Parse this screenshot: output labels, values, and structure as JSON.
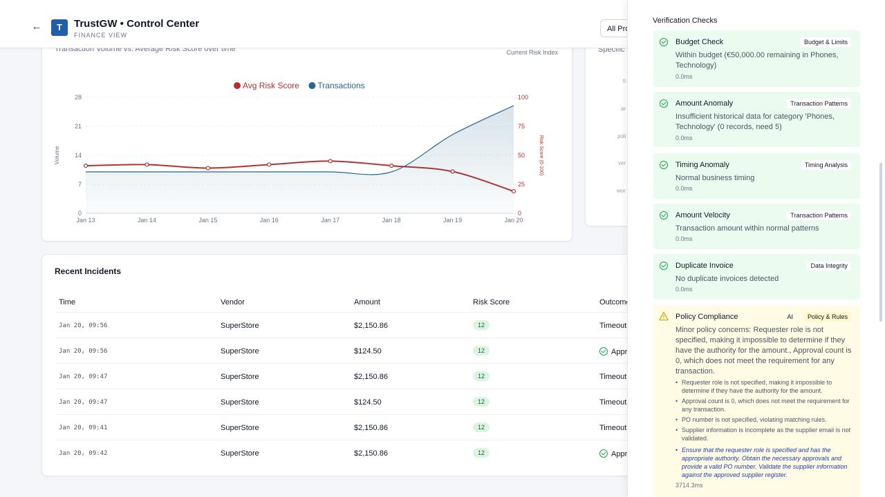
{
  "header": {
    "title": "TrustGW • Control Center",
    "subtitle": "FINANCE VIEW",
    "logo_letter": "T",
    "product_select": "All Pro"
  },
  "chart_card": {
    "subtitle": "Transaction Volume vs. Average Risk Score over time",
    "right_label": "Current Risk Index"
  },
  "side_card": {
    "title": "Specific",
    "labels": [
      "ti",
      "ar",
      "poli",
      "ver",
      "wor"
    ]
  },
  "chart_data": {
    "type": "line",
    "title": "",
    "categories": [
      "Jan 13",
      "Jan 14",
      "Jan 15",
      "Jan 16",
      "Jan 17",
      "Jan 18",
      "Jan 19",
      "Jan 20"
    ],
    "series": [
      {
        "name": "Avg Risk Score",
        "color": "#b53131",
        "axis": "right",
        "values": [
          41,
          42,
          39,
          42,
          45,
          41,
          36,
          19
        ]
      },
      {
        "name": "Transactions",
        "color": "#23668f",
        "axis": "left",
        "type": "area",
        "values": [
          10,
          10,
          10,
          10,
          10,
          10,
          19,
          26
        ]
      }
    ],
    "ylabel": "Volume",
    "y2label": "Risk Score (0-100)",
    "ylim": [
      0,
      28
    ],
    "y2lim": [
      0,
      100
    ],
    "yticks": [
      "0",
      "7",
      "14",
      "21",
      "28"
    ],
    "y2ticks": [
      "0",
      "25",
      "50",
      "75",
      "100"
    ],
    "legend": "top-center"
  },
  "incidents": {
    "title": "Recent Incidents",
    "columns": [
      "Time",
      "Vendor",
      "Amount",
      "Risk Score",
      "Outcome"
    ],
    "rows": [
      {
        "time": "Jan 20, 09:56",
        "vendor": "SuperStore",
        "amount": "$2,150.86",
        "risk": "12",
        "outcome": "Timeout",
        "approved": false
      },
      {
        "time": "Jan 20, 09:56",
        "vendor": "SuperStore",
        "amount": "$124.50",
        "risk": "12",
        "outcome": "Appro",
        "approved": true
      },
      {
        "time": "Jan 20, 09:47",
        "vendor": "SuperStore",
        "amount": "$2,150.86",
        "risk": "12",
        "outcome": "Timeout",
        "approved": false
      },
      {
        "time": "Jan 20, 09:47",
        "vendor": "SuperStore",
        "amount": "$124.50",
        "risk": "12",
        "outcome": "Timeout",
        "approved": false
      },
      {
        "time": "Jan 20, 09:41",
        "vendor": "SuperStore",
        "amount": "$2,150.86",
        "risk": "12",
        "outcome": "Timeout",
        "approved": false
      },
      {
        "time": "Jan 20, 09:42",
        "vendor": "SuperStore",
        "amount": "$2,150.86",
        "risk": "12",
        "outcome": "Appro",
        "approved": true
      }
    ]
  },
  "verification": {
    "title": "Verification Checks",
    "checks": [
      {
        "title": "Budget Check",
        "tag": "Budget & Limits",
        "desc": "Within budget (€50,000.00 remaining in Phones, Technology)",
        "time": "0.0ms",
        "status": "pass"
      },
      {
        "title": "Amount Anomaly",
        "tag": "Transaction Patterns",
        "desc": "Insufficient historical data for category 'Phones, Technology' (0 records, need 5)",
        "time": "0.0ms",
        "status": "pass"
      },
      {
        "title": "Timing Anomaly",
        "tag": "Timing Analysis",
        "desc": "Normal business timing",
        "time": "0.0ms",
        "status": "pass"
      },
      {
        "title": "Amount Velocity",
        "tag": "Transaction Patterns",
        "desc": "Transaction amount within normal patterns",
        "time": "0.0ms",
        "status": "pass"
      },
      {
        "title": "Duplicate Invoice",
        "tag": "Data Integrity",
        "desc": "No duplicate invoices detected",
        "time": "0.0ms",
        "status": "pass"
      }
    ],
    "policy": {
      "title": "Policy Compliance",
      "ai_tag": "AI",
      "tag": "Policy & Rules",
      "desc": "Minor policy concerns: Requester role is not specified, making it impossible to determine if they have the authority for the amount., Approval count is 0, which does not meet the requirement for any transaction.",
      "bullets": [
        "Requester role is not specified, making it impossible to determine if they have the authority for the amount.",
        "Approval count is 0, which does not meet the requirement for any transaction.",
        "PO number is not specified, violating matching rules.",
        "Supplier information is incomplete as the supplier email is not validated."
      ],
      "recommendation": "Ensure that the requester role is specified and has the appropriate authority. Obtain the necessary approvals and provide a valid PO number. Validate the supplier information against the approved supplier register.",
      "time": "3714.3ms",
      "status": "warning"
    }
  }
}
